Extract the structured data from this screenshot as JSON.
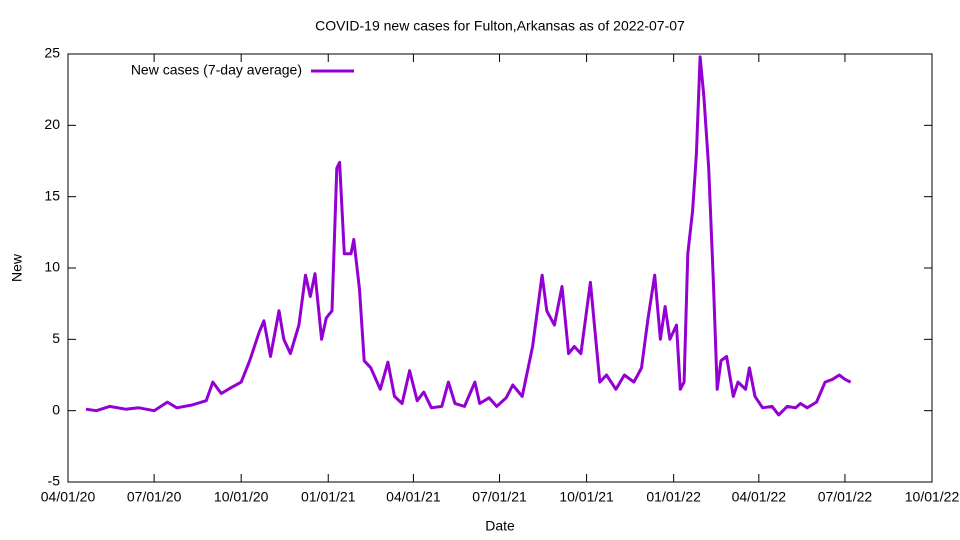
{
  "chart_data": {
    "type": "line",
    "title": "COVID-19 new cases for Fulton,Arkansas as of 2022-07-07",
    "x_label": "Date",
    "y_label": "New",
    "legend_position": "top-left",
    "xlim": [
      "04/01/20",
      "10/01/22"
    ],
    "xticks": [
      "04/01/20",
      "07/01/20",
      "10/01/20",
      "01/01/21",
      "04/01/21",
      "07/01/21",
      "10/01/21",
      "01/01/22",
      "04/01/22",
      "07/01/22",
      "10/01/22"
    ],
    "ylim": [
      -5,
      25
    ],
    "yticks": [
      -5,
      0,
      5,
      10,
      15,
      20,
      25
    ],
    "x": [
      "04/20/20",
      "05/01/20",
      "05/15/20",
      "06/01/20",
      "06/15/20",
      "07/01/20",
      "07/15/20",
      "07/25/20",
      "08/10/20",
      "08/25/20",
      "09/01/20",
      "09/10/20",
      "09/20/20",
      "10/01/20",
      "10/10/20",
      "10/20/20",
      "10/25/20",
      "11/01/20",
      "11/10/20",
      "11/15/20",
      "11/22/20",
      "12/01/20",
      "12/08/20",
      "12/13/20",
      "12/18/20",
      "12/25/20",
      "12/30/20",
      "01/05/21",
      "01/10/21",
      "01/13/21",
      "01/18/21",
      "01/25/21",
      "01/28/21",
      "02/03/21",
      "02/08/21",
      "02/15/21",
      "02/25/21",
      "03/05/21",
      "03/12/21",
      "03/20/21",
      "03/28/21",
      "04/05/21",
      "04/12/21",
      "04/20/21",
      "05/01/21",
      "05/08/21",
      "05/15/21",
      "05/25/21",
      "06/05/21",
      "06/10/21",
      "06/20/21",
      "06/28/21",
      "07/08/21",
      "07/15/21",
      "07/25/21",
      "08/05/21",
      "08/15/21",
      "08/20/21",
      "08/28/21",
      "09/05/21",
      "09/12/21",
      "09/18/21",
      "09/25/21",
      "10/05/21",
      "10/15/21",
      "10/22/21",
      "11/01/21",
      "11/10/21",
      "11/20/21",
      "11/28/21",
      "12/05/21",
      "12/12/21",
      "12/18/21",
      "12/23/21",
      "12/28/21",
      "01/04/22",
      "01/08/22",
      "01/12/22",
      "01/16/22",
      "01/21/22",
      "01/25/22",
      "01/29/22",
      "02/02/22",
      "02/07/22",
      "02/12/22",
      "02/16/22",
      "02/20/22",
      "02/26/22",
      "03/05/22",
      "03/10/22",
      "03/18/22",
      "03/22/22",
      "03/28/22",
      "04/05/22",
      "04/15/22",
      "04/22/22",
      "05/01/22",
      "05/10/22",
      "05/15/22",
      "05/22/22",
      "06/01/22",
      "06/10/22",
      "06/18/22",
      "06/25/22",
      "07/01/22",
      "07/07/22"
    ],
    "series": [
      {
        "name": "New cases (7-day average)",
        "color": "#9400d3",
        "values": [
          0.1,
          0.0,
          0.3,
          0.1,
          0.2,
          0.0,
          0.6,
          0.2,
          0.4,
          0.7,
          2.0,
          1.2,
          1.6,
          2.0,
          3.5,
          5.5,
          6.3,
          3.8,
          7.0,
          5.0,
          4.0,
          6.0,
          9.5,
          8.0,
          9.6,
          5.0,
          6.5,
          7.0,
          17.0,
          17.4,
          11.0,
          11.0,
          12.0,
          8.5,
          3.5,
          3.0,
          1.5,
          3.4,
          1.0,
          0.5,
          2.8,
          0.7,
          1.3,
          0.2,
          0.3,
          2.0,
          0.5,
          0.3,
          2.0,
          0.5,
          0.9,
          0.3,
          0.9,
          1.8,
          1.0,
          4.5,
          9.5,
          7.0,
          6.0,
          8.7,
          4.0,
          4.5,
          4.0,
          9.0,
          2.0,
          2.5,
          1.5,
          2.5,
          2.0,
          3.0,
          6.5,
          9.5,
          5.0,
          7.3,
          5.0,
          6.0,
          1.5,
          2.0,
          11.0,
          14.0,
          18.0,
          24.8,
          22.0,
          17.0,
          9.0,
          1.5,
          3.5,
          3.8,
          1.0,
          2.0,
          1.5,
          3.0,
          1.0,
          0.2,
          0.3,
          -0.3,
          0.3,
          0.2,
          0.5,
          0.2,
          0.6,
          2.0,
          2.2,
          2.5,
          2.2,
          2.0
        ]
      }
    ]
  }
}
